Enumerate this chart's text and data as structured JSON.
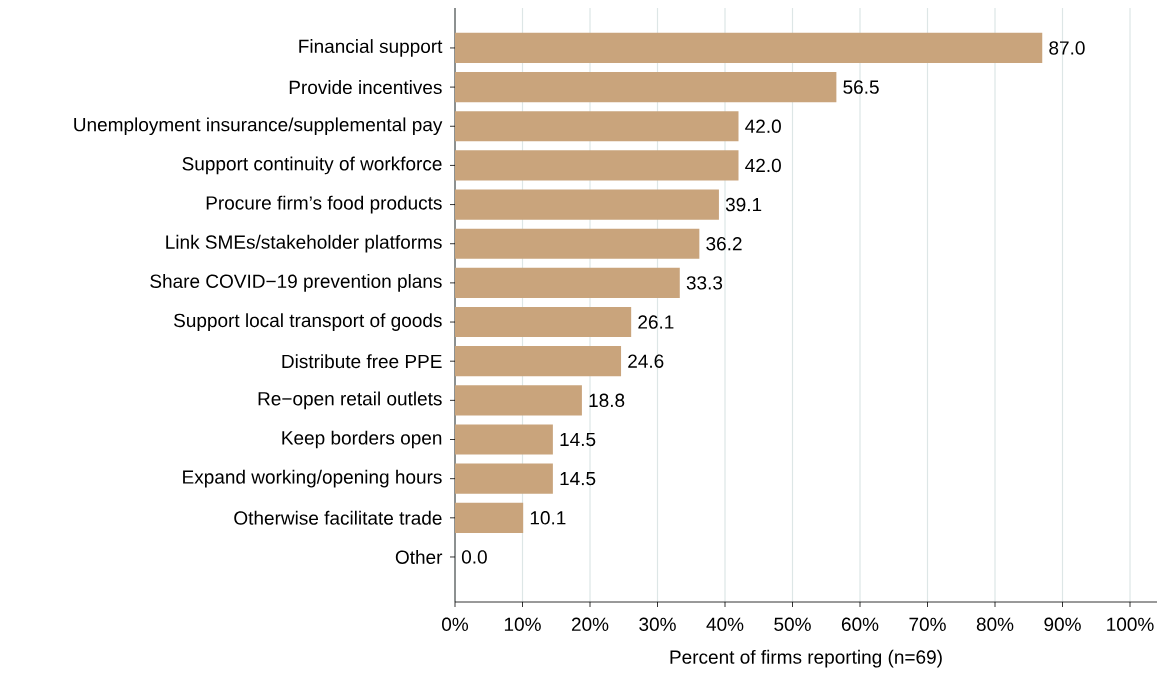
{
  "chart_data": {
    "type": "bar",
    "orientation": "horizontal",
    "categories": [
      "Financial support",
      "Provide incentives",
      "Unemployment insurance/supplemental pay",
      "Support continuity of workforce",
      "Procure firm’s food products",
      "Link SMEs/stakeholder platforms",
      "Share COVID−19 prevention plans",
      "Support local transport of goods",
      "Distribute free PPE",
      "Re−open retail outlets",
      "Keep borders open",
      "Expand working/opening hours",
      "Otherwise facilitate trade",
      "Other"
    ],
    "values": [
      87.0,
      56.5,
      42.0,
      42.0,
      39.1,
      36.2,
      33.3,
      26.1,
      24.6,
      18.8,
      14.5,
      14.5,
      10.1,
      0.0
    ],
    "value_labels": [
      "87.0",
      "56.5",
      "42.0",
      "42.0",
      "39.1",
      "36.2",
      "33.3",
      "26.1",
      "24.6",
      "18.8",
      "14.5",
      "14.5",
      "10.1",
      "0.0"
    ],
    "color": "#c9a47c",
    "xlim": [
      0,
      104
    ],
    "xticks": [
      {
        "value": 0,
        "label": "0%"
      },
      {
        "value": 10,
        "label": "10%"
      },
      {
        "value": 20,
        "label": "20%"
      },
      {
        "value": 30,
        "label": "30%"
      },
      {
        "value": 40,
        "label": "40%"
      },
      {
        "value": 50,
        "label": "50%"
      },
      {
        "value": 60,
        "label": "60%"
      },
      {
        "value": 70,
        "label": "70%"
      },
      {
        "value": 80,
        "label": "80%"
      },
      {
        "value": 90,
        "label": "90%"
      },
      {
        "value": 100,
        "label": "100%"
      }
    ],
    "xlabel": "Percent of firms reporting (n=69)",
    "grid": "x"
  }
}
